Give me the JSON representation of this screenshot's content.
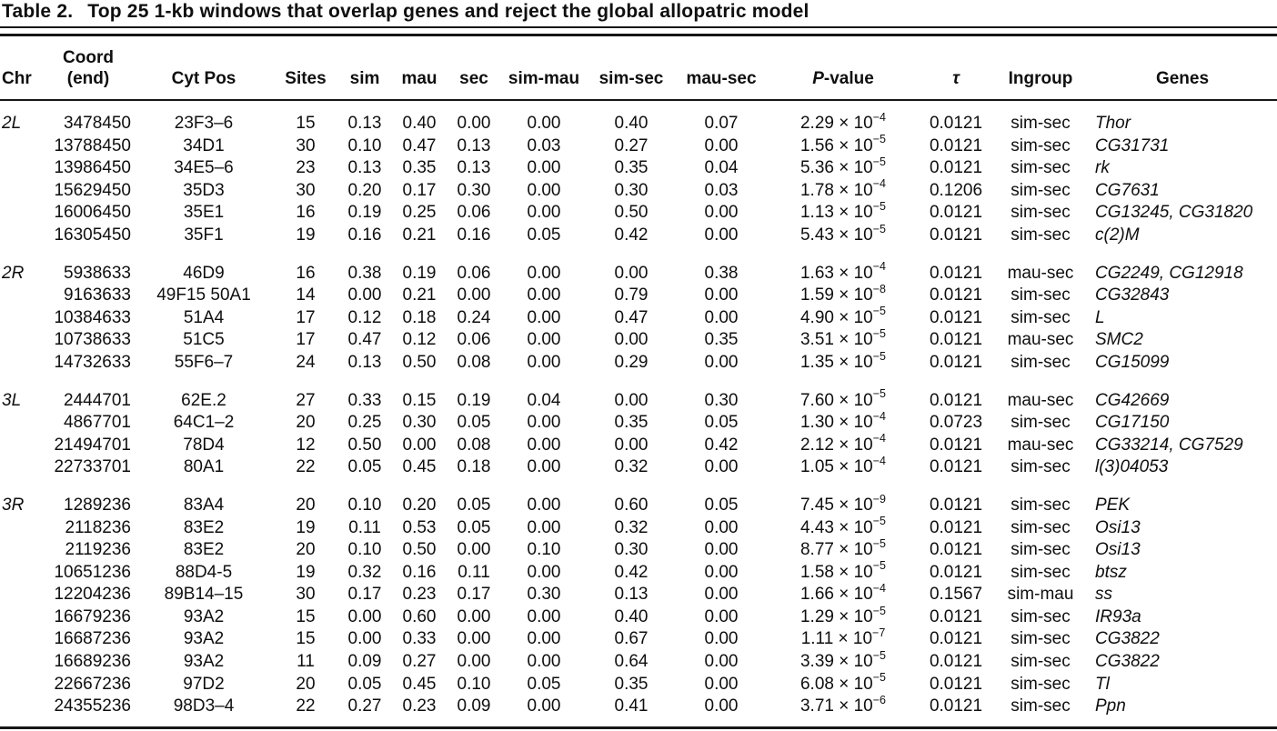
{
  "table": {
    "label": "Table 2.",
    "title": "Top 25 1-kb windows that overlap genes and reject the global allopatric model",
    "columns": [
      {
        "key": "chr",
        "label": "Chr",
        "align": "al"
      },
      {
        "key": "coord",
        "label": "Coord\n(end)",
        "align": "ar"
      },
      {
        "key": "cyt",
        "label": "Cyt Pos",
        "align": "ac"
      },
      {
        "key": "sites",
        "label": "Sites",
        "align": "ac"
      },
      {
        "key": "sim",
        "label": "sim",
        "align": "ac"
      },
      {
        "key": "mau",
        "label": "mau",
        "align": "ac"
      },
      {
        "key": "sec",
        "label": "sec",
        "align": "ac"
      },
      {
        "key": "sim_mau",
        "label": "sim-mau",
        "align": "ac"
      },
      {
        "key": "sim_sec",
        "label": "sim-sec",
        "align": "ac"
      },
      {
        "key": "mau_sec",
        "label": "mau-sec",
        "align": "ac"
      },
      {
        "key": "p",
        "label": "P-value",
        "align": "ac",
        "italic_first": true
      },
      {
        "key": "tau",
        "label": "τ",
        "align": "ac",
        "italic_label": true
      },
      {
        "key": "ingroup",
        "label": "Ingroup",
        "align": "ac"
      },
      {
        "key": "genes",
        "label": "Genes",
        "align": "al"
      }
    ],
    "groups": [
      {
        "chr": "2L",
        "rows": [
          {
            "coord": "3478450",
            "cyt": "23F3–6",
            "sites": "15",
            "sim": "0.13",
            "mau": "0.40",
            "sec": "0.00",
            "sim_mau": "0.00",
            "sim_sec": "0.40",
            "mau_sec": "0.07",
            "p_coef": "2.29",
            "p_exp": "−4",
            "tau": "0.0121",
            "ingroup": "sim-sec",
            "genes": "Thor"
          },
          {
            "coord": "13788450",
            "cyt": "34D1",
            "sites": "30",
            "sim": "0.10",
            "mau": "0.47",
            "sec": "0.13",
            "sim_mau": "0.03",
            "sim_sec": "0.27",
            "mau_sec": "0.00",
            "p_coef": "1.56",
            "p_exp": "−5",
            "tau": "0.0121",
            "ingroup": "sim-sec",
            "genes": "CG31731"
          },
          {
            "coord": "13986450",
            "cyt": "34E5–6",
            "sites": "23",
            "sim": "0.13",
            "mau": "0.35",
            "sec": "0.13",
            "sim_mau": "0.00",
            "sim_sec": "0.35",
            "mau_sec": "0.04",
            "p_coef": "5.36",
            "p_exp": "−5",
            "tau": "0.0121",
            "ingroup": "sim-sec",
            "genes": "rk"
          },
          {
            "coord": "15629450",
            "cyt": "35D3",
            "sites": "30",
            "sim": "0.20",
            "mau": "0.17",
            "sec": "0.30",
            "sim_mau": "0.00",
            "sim_sec": "0.30",
            "mau_sec": "0.03",
            "p_coef": "1.78",
            "p_exp": "−4",
            "tau": "0.1206",
            "ingroup": "sim-sec",
            "genes": "CG7631"
          },
          {
            "coord": "16006450",
            "cyt": "35E1",
            "sites": "16",
            "sim": "0.19",
            "mau": "0.25",
            "sec": "0.06",
            "sim_mau": "0.00",
            "sim_sec": "0.50",
            "mau_sec": "0.00",
            "p_coef": "1.13",
            "p_exp": "−5",
            "tau": "0.0121",
            "ingroup": "sim-sec",
            "genes": "CG13245, CG31820"
          },
          {
            "coord": "16305450",
            "cyt": "35F1",
            "sites": "19",
            "sim": "0.16",
            "mau": "0.21",
            "sec": "0.16",
            "sim_mau": "0.05",
            "sim_sec": "0.42",
            "mau_sec": "0.00",
            "p_coef": "5.43",
            "p_exp": "−5",
            "tau": "0.0121",
            "ingroup": "sim-sec",
            "genes": "c(2)M"
          }
        ]
      },
      {
        "chr": "2R",
        "rows": [
          {
            "coord": "5938633",
            "cyt": "46D9",
            "sites": "16",
            "sim": "0.38",
            "mau": "0.19",
            "sec": "0.06",
            "sim_mau": "0.00",
            "sim_sec": "0.00",
            "mau_sec": "0.38",
            "p_coef": "1.63",
            "p_exp": "−4",
            "tau": "0.0121",
            "ingroup": "mau-sec",
            "genes": "CG2249, CG12918"
          },
          {
            "coord": "9163633",
            "cyt": "49F15 50A1",
            "sites": "14",
            "sim": "0.00",
            "mau": "0.21",
            "sec": "0.00",
            "sim_mau": "0.00",
            "sim_sec": "0.79",
            "mau_sec": "0.00",
            "p_coef": "1.59",
            "p_exp": "−8",
            "tau": "0.0121",
            "ingroup": "sim-sec",
            "genes": "CG32843"
          },
          {
            "coord": "10384633",
            "cyt": "51A4",
            "sites": "17",
            "sim": "0.12",
            "mau": "0.18",
            "sec": "0.24",
            "sim_mau": "0.00",
            "sim_sec": "0.47",
            "mau_sec": "0.00",
            "p_coef": "4.90",
            "p_exp": "−5",
            "tau": "0.0121",
            "ingroup": "sim-sec",
            "genes": "L"
          },
          {
            "coord": "10738633",
            "cyt": "51C5",
            "sites": "17",
            "sim": "0.47",
            "mau": "0.12",
            "sec": "0.06",
            "sim_mau": "0.00",
            "sim_sec": "0.00",
            "mau_sec": "0.35",
            "p_coef": "3.51",
            "p_exp": "−5",
            "tau": "0.0121",
            "ingroup": "mau-sec",
            "genes": "SMC2"
          },
          {
            "coord": "14732633",
            "cyt": "55F6–7",
            "sites": "24",
            "sim": "0.13",
            "mau": "0.50",
            "sec": "0.08",
            "sim_mau": "0.00",
            "sim_sec": "0.29",
            "mau_sec": "0.00",
            "p_coef": "1.35",
            "p_exp": "−5",
            "tau": "0.0121",
            "ingroup": "sim-sec",
            "genes": "CG15099"
          }
        ]
      },
      {
        "chr": "3L",
        "rows": [
          {
            "coord": "2444701",
            "cyt": "62E.2",
            "sites": "27",
            "sim": "0.33",
            "mau": "0.15",
            "sec": "0.19",
            "sim_mau": "0.04",
            "sim_sec": "0.00",
            "mau_sec": "0.30",
            "p_coef": "7.60",
            "p_exp": "−5",
            "tau": "0.0121",
            "ingroup": "mau-sec",
            "genes": "CG42669"
          },
          {
            "coord": "4867701",
            "cyt": "64C1–2",
            "sites": "20",
            "sim": "0.25",
            "mau": "0.30",
            "sec": "0.05",
            "sim_mau": "0.00",
            "sim_sec": "0.35",
            "mau_sec": "0.05",
            "p_coef": "1.30",
            "p_exp": "−4",
            "tau": "0.0723",
            "ingroup": "sim-sec",
            "genes": "CG17150"
          },
          {
            "coord": "21494701",
            "cyt": "78D4",
            "sites": "12",
            "sim": "0.50",
            "mau": "0.00",
            "sec": "0.08",
            "sim_mau": "0.00",
            "sim_sec": "0.00",
            "mau_sec": "0.42",
            "p_coef": "2.12",
            "p_exp": "−4",
            "tau": "0.0121",
            "ingroup": "mau-sec",
            "genes": "CG33214, CG7529"
          },
          {
            "coord": "22733701",
            "cyt": "80A1",
            "sites": "22",
            "sim": "0.05",
            "mau": "0.45",
            "sec": "0.18",
            "sim_mau": "0.00",
            "sim_sec": "0.32",
            "mau_sec": "0.00",
            "p_coef": "1.05",
            "p_exp": "−4",
            "tau": "0.0121",
            "ingroup": "sim-sec",
            "genes": "l(3)04053"
          }
        ]
      },
      {
        "chr": "3R",
        "rows": [
          {
            "coord": "1289236",
            "cyt": "83A4",
            "sites": "20",
            "sim": "0.10",
            "mau": "0.20",
            "sec": "0.05",
            "sim_mau": "0.00",
            "sim_sec": "0.60",
            "mau_sec": "0.05",
            "p_coef": "7.45",
            "p_exp": "−9",
            "tau": "0.0121",
            "ingroup": "sim-sec",
            "genes": "PEK"
          },
          {
            "coord": "2118236",
            "cyt": "83E2",
            "sites": "19",
            "sim": "0.11",
            "mau": "0.53",
            "sec": "0.05",
            "sim_mau": "0.00",
            "sim_sec": "0.32",
            "mau_sec": "0.00",
            "p_coef": "4.43",
            "p_exp": "−5",
            "tau": "0.0121",
            "ingroup": "sim-sec",
            "genes": "Osi13"
          },
          {
            "coord": "2119236",
            "cyt": "83E2",
            "sites": "20",
            "sim": "0.10",
            "mau": "0.50",
            "sec": "0.00",
            "sim_mau": "0.10",
            "sim_sec": "0.30",
            "mau_sec": "0.00",
            "p_coef": "8.77",
            "p_exp": "−5",
            "tau": "0.0121",
            "ingroup": "sim-sec",
            "genes": "Osi13"
          },
          {
            "coord": "10651236",
            "cyt": "88D4-5",
            "sites": "19",
            "sim": "0.32",
            "mau": "0.16",
            "sec": "0.11",
            "sim_mau": "0.00",
            "sim_sec": "0.42",
            "mau_sec": "0.00",
            "p_coef": "1.58",
            "p_exp": "−5",
            "tau": "0.0121",
            "ingroup": "sim-sec",
            "genes": "btsz"
          },
          {
            "coord": "12204236",
            "cyt": "89B14–15",
            "sites": "30",
            "sim": "0.17",
            "mau": "0.23",
            "sec": "0.17",
            "sim_mau": "0.30",
            "sim_sec": "0.13",
            "mau_sec": "0.00",
            "p_coef": "1.66",
            "p_exp": "−4",
            "tau": "0.1567",
            "ingroup": "sim-mau",
            "genes": "ss"
          },
          {
            "coord": "16679236",
            "cyt": "93A2",
            "sites": "15",
            "sim": "0.00",
            "mau": "0.60",
            "sec": "0.00",
            "sim_mau": "0.00",
            "sim_sec": "0.40",
            "mau_sec": "0.00",
            "p_coef": "1.29",
            "p_exp": "−5",
            "tau": "0.0121",
            "ingroup": "sim-sec",
            "genes": "IR93a"
          },
          {
            "coord": "16687236",
            "cyt": "93A2",
            "sites": "15",
            "sim": "0.00",
            "mau": "0.33",
            "sec": "0.00",
            "sim_mau": "0.00",
            "sim_sec": "0.67",
            "mau_sec": "0.00",
            "p_coef": "1.11",
            "p_exp": "−7",
            "tau": "0.0121",
            "ingroup": "sim-sec",
            "genes": "CG3822"
          },
          {
            "coord": "16689236",
            "cyt": "93A2",
            "sites": "11",
            "sim": "0.09",
            "mau": "0.27",
            "sec": "0.00",
            "sim_mau": "0.00",
            "sim_sec": "0.64",
            "mau_sec": "0.00",
            "p_coef": "3.39",
            "p_exp": "−5",
            "tau": "0.0121",
            "ingroup": "sim-sec",
            "genes": "CG3822"
          },
          {
            "coord": "22667236",
            "cyt": "97D2",
            "sites": "20",
            "sim": "0.05",
            "mau": "0.45",
            "sec": "0.10",
            "sim_mau": "0.05",
            "sim_sec": "0.35",
            "mau_sec": "0.00",
            "p_coef": "6.08",
            "p_exp": "−5",
            "tau": "0.0121",
            "ingroup": "sim-sec",
            "genes": "Tl"
          },
          {
            "coord": "24355236",
            "cyt": "98D3–4",
            "sites": "22",
            "sim": "0.27",
            "mau": "0.23",
            "sec": "0.09",
            "sim_mau": "0.00",
            "sim_sec": "0.41",
            "mau_sec": "0.00",
            "p_coef": "3.71",
            "p_exp": "−6",
            "tau": "0.0121",
            "ingroup": "sim-sec",
            "genes": "Ppn"
          }
        ]
      }
    ],
    "p_times_base": " × 10"
  }
}
